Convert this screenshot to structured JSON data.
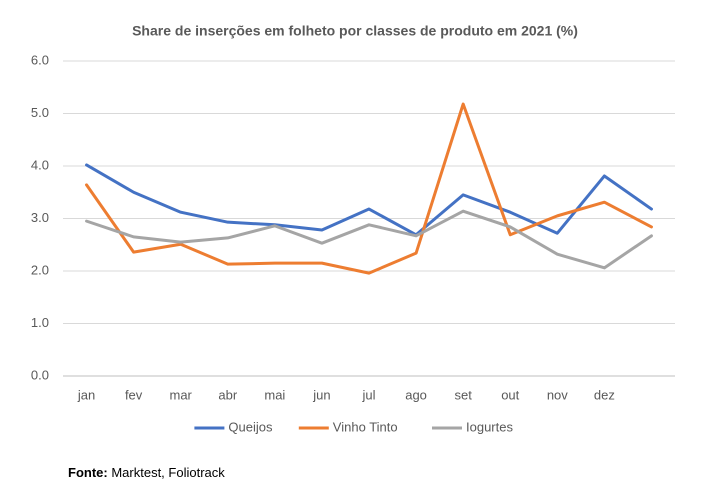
{
  "chart_data": {
    "type": "line",
    "title": "Share de inserções em folheto por classes de produto em 2021 (%)",
    "categories": [
      "jan",
      "fev",
      "mar",
      "abr",
      "mai",
      "jun",
      "jul",
      "ago",
      "set",
      "out",
      "nov",
      "dez",
      null
    ],
    "series": [
      {
        "name": "Queijos",
        "color": "#4472c4",
        "values": [
          4.02,
          3.5,
          3.12,
          2.93,
          2.88,
          2.78,
          3.18,
          2.69,
          3.45,
          3.12,
          2.72,
          3.81,
          3.18
        ]
      },
      {
        "name": "Vinho Tinto",
        "color": "#ed7d31",
        "values": [
          3.64,
          2.36,
          2.51,
          2.13,
          2.15,
          2.15,
          1.96,
          2.34,
          5.18,
          2.69,
          3.05,
          3.31,
          2.84
        ]
      },
      {
        "name": "Iogurtes",
        "color": "#a5a5a5",
        "values": [
          2.95,
          2.65,
          2.55,
          2.63,
          2.86,
          2.53,
          2.88,
          2.67,
          3.14,
          2.84,
          2.32,
          2.06,
          2.67
        ]
      }
    ],
    "ylim": [
      0,
      6
    ],
    "yticks": [
      {
        "value": 0,
        "label": "0.0"
      },
      {
        "value": 1,
        "label": "1.0"
      },
      {
        "value": 2,
        "label": "2.0"
      },
      {
        "value": 3,
        "label": "3.0"
      },
      {
        "value": 4,
        "label": "4.0"
      },
      {
        "value": 5,
        "label": "5.0"
      },
      {
        "value": 6,
        "label": "6.0"
      }
    ],
    "grid": true,
    "legend": "bottom"
  },
  "source": {
    "label": "Fonte:",
    "text": "Marktest, Foliotrack"
  }
}
